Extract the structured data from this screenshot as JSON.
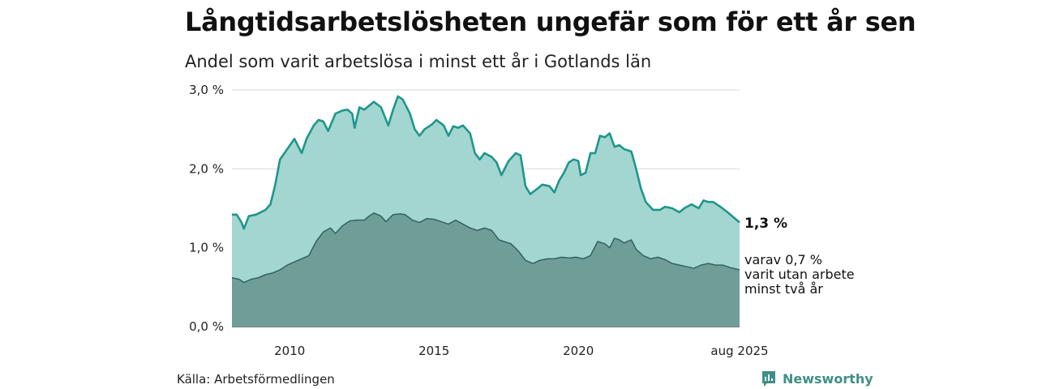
{
  "header": {
    "title": "Långtidsarbetslösheten ungefär som för ett år sen",
    "subtitle": "Andel som varit arbetslösa i minst ett år i Gotlands län"
  },
  "footer": {
    "source": "Källa: Arbetsförmedlingen",
    "brand": "Newsworthy"
  },
  "colors": {
    "main_line": "#1f968b",
    "main_fill": "#a3d6d0",
    "sub_line": "#2e5e58",
    "sub_fill": "#6f9d97",
    "grid": "#d9d9d9"
  },
  "chart_data": {
    "type": "area",
    "title": "Långtidsarbetslösheten ungefär som för ett år sen",
    "subtitle": "Andel som varit arbetslösa i minst ett år i Gotlands län",
    "x_range": [
      "2008-01",
      "2025-08"
    ],
    "ylim": [
      0,
      3.0
    ],
    "y_ticks": [
      {
        "value": 0,
        "label": "0,0 %"
      },
      {
        "value": 1,
        "label": "1,0 %"
      },
      {
        "value": 2,
        "label": "2,0 %"
      },
      {
        "value": 3,
        "label": "3,0 %"
      }
    ],
    "x_ticks": [
      {
        "x": "2010-01",
        "label": "2010"
      },
      {
        "x": "2015-01",
        "label": "2015"
      },
      {
        "x": "2020-01",
        "label": "2020"
      },
      {
        "x": "2025-08",
        "label": "aug 2025"
      }
    ],
    "grid": true,
    "series": [
      {
        "key": "minst_ett_ar",
        "end_label": "1,3 %",
        "points": [
          [
            "2008-01",
            1.42
          ],
          [
            "2008-03",
            1.42
          ],
          [
            "2008-05",
            1.32
          ],
          [
            "2008-06",
            1.24
          ],
          [
            "2008-08",
            1.4
          ],
          [
            "2008-11",
            1.42
          ],
          [
            "2009-01",
            1.45
          ],
          [
            "2009-03",
            1.48
          ],
          [
            "2009-05",
            1.55
          ],
          [
            "2009-07",
            1.8
          ],
          [
            "2009-09",
            2.12
          ],
          [
            "2009-12",
            2.25
          ],
          [
            "2010-03",
            2.38
          ],
          [
            "2010-06",
            2.2
          ],
          [
            "2010-08",
            2.38
          ],
          [
            "2010-11",
            2.55
          ],
          [
            "2011-01",
            2.62
          ],
          [
            "2011-03",
            2.6
          ],
          [
            "2011-05",
            2.48
          ],
          [
            "2011-08",
            2.7
          ],
          [
            "2011-11",
            2.74
          ],
          [
            "2012-01",
            2.75
          ],
          [
            "2012-03",
            2.7
          ],
          [
            "2012-04",
            2.52
          ],
          [
            "2012-06",
            2.78
          ],
          [
            "2012-08",
            2.75
          ],
          [
            "2012-10",
            2.8
          ],
          [
            "2012-12",
            2.85
          ],
          [
            "2013-03",
            2.78
          ],
          [
            "2013-06",
            2.55
          ],
          [
            "2013-08",
            2.75
          ],
          [
            "2013-10",
            2.92
          ],
          [
            "2013-12",
            2.88
          ],
          [
            "2014-03",
            2.7
          ],
          [
            "2014-05",
            2.5
          ],
          [
            "2014-07",
            2.42
          ],
          [
            "2014-09",
            2.5
          ],
          [
            "2014-12",
            2.56
          ],
          [
            "2015-02",
            2.62
          ],
          [
            "2015-05",
            2.55
          ],
          [
            "2015-07",
            2.42
          ],
          [
            "2015-09",
            2.54
          ],
          [
            "2015-11",
            2.52
          ],
          [
            "2016-01",
            2.55
          ],
          [
            "2016-04",
            2.45
          ],
          [
            "2016-06",
            2.2
          ],
          [
            "2016-08",
            2.12
          ],
          [
            "2016-10",
            2.2
          ],
          [
            "2017-01",
            2.15
          ],
          [
            "2017-03",
            2.08
          ],
          [
            "2017-05",
            1.92
          ],
          [
            "2017-08",
            2.1
          ],
          [
            "2017-11",
            2.2
          ],
          [
            "2018-01",
            2.17
          ],
          [
            "2018-03",
            1.78
          ],
          [
            "2018-05",
            1.68
          ],
          [
            "2018-08",
            1.75
          ],
          [
            "2018-10",
            1.8
          ],
          [
            "2019-01",
            1.78
          ],
          [
            "2019-03",
            1.7
          ],
          [
            "2019-05",
            1.85
          ],
          [
            "2019-07",
            1.95
          ],
          [
            "2019-09",
            2.08
          ],
          [
            "2019-11",
            2.12
          ],
          [
            "2020-01",
            2.1
          ],
          [
            "2020-02",
            1.92
          ],
          [
            "2020-04",
            1.95
          ],
          [
            "2020-06",
            2.2
          ],
          [
            "2020-08",
            2.2
          ],
          [
            "2020-10",
            2.42
          ],
          [
            "2020-12",
            2.4
          ],
          [
            "2021-02",
            2.45
          ],
          [
            "2021-04",
            2.28
          ],
          [
            "2021-06",
            2.3
          ],
          [
            "2021-08",
            2.25
          ],
          [
            "2021-11",
            2.22
          ],
          [
            "2022-01",
            2.0
          ],
          [
            "2022-03",
            1.75
          ],
          [
            "2022-05",
            1.58
          ],
          [
            "2022-08",
            1.48
          ],
          [
            "2022-11",
            1.48
          ],
          [
            "2023-01",
            1.52
          ],
          [
            "2023-04",
            1.5
          ],
          [
            "2023-07",
            1.45
          ],
          [
            "2023-09",
            1.5
          ],
          [
            "2023-12",
            1.55
          ],
          [
            "2024-03",
            1.5
          ],
          [
            "2024-05",
            1.6
          ],
          [
            "2024-07",
            1.58
          ],
          [
            "2024-09",
            1.58
          ],
          [
            "2024-12",
            1.52
          ],
          [
            "2025-03",
            1.45
          ],
          [
            "2025-08",
            1.32
          ]
        ]
      },
      {
        "key": "minst_tva_ar",
        "end_label": [
          "varav 0,7 %",
          "varit utan arbete",
          "minst två år"
        ],
        "points": [
          [
            "2008-01",
            0.62
          ],
          [
            "2008-04",
            0.6
          ],
          [
            "2008-06",
            0.56
          ],
          [
            "2008-09",
            0.6
          ],
          [
            "2008-12",
            0.62
          ],
          [
            "2009-03",
            0.66
          ],
          [
            "2009-06",
            0.68
          ],
          [
            "2009-09",
            0.72
          ],
          [
            "2009-12",
            0.78
          ],
          [
            "2010-03",
            0.82
          ],
          [
            "2010-06",
            0.86
          ],
          [
            "2010-09",
            0.9
          ],
          [
            "2010-12",
            1.08
          ],
          [
            "2011-03",
            1.2
          ],
          [
            "2011-06",
            1.25
          ],
          [
            "2011-08",
            1.18
          ],
          [
            "2011-11",
            1.28
          ],
          [
            "2012-02",
            1.34
          ],
          [
            "2012-05",
            1.35
          ],
          [
            "2012-08",
            1.35
          ],
          [
            "2012-10",
            1.4
          ],
          [
            "2012-12",
            1.44
          ],
          [
            "2013-03",
            1.4
          ],
          [
            "2013-05",
            1.33
          ],
          [
            "2013-08",
            1.42
          ],
          [
            "2013-11",
            1.43
          ],
          [
            "2014-01",
            1.42
          ],
          [
            "2014-04",
            1.35
          ],
          [
            "2014-07",
            1.32
          ],
          [
            "2014-10",
            1.37
          ],
          [
            "2015-01",
            1.36
          ],
          [
            "2015-04",
            1.33
          ],
          [
            "2015-07",
            1.3
          ],
          [
            "2015-10",
            1.35
          ],
          [
            "2016-01",
            1.3
          ],
          [
            "2016-04",
            1.25
          ],
          [
            "2016-07",
            1.22
          ],
          [
            "2016-10",
            1.25
          ],
          [
            "2017-01",
            1.22
          ],
          [
            "2017-04",
            1.1
          ],
          [
            "2017-06",
            1.08
          ],
          [
            "2017-09",
            1.05
          ],
          [
            "2017-12",
            0.96
          ],
          [
            "2018-03",
            0.84
          ],
          [
            "2018-06",
            0.8
          ],
          [
            "2018-09",
            0.84
          ],
          [
            "2018-12",
            0.86
          ],
          [
            "2019-03",
            0.86
          ],
          [
            "2019-06",
            0.88
          ],
          [
            "2019-09",
            0.87
          ],
          [
            "2019-12",
            0.88
          ],
          [
            "2020-03",
            0.86
          ],
          [
            "2020-06",
            0.9
          ],
          [
            "2020-09",
            1.08
          ],
          [
            "2020-12",
            1.05
          ],
          [
            "2021-02",
            1.0
          ],
          [
            "2021-04",
            1.12
          ],
          [
            "2021-06",
            1.1
          ],
          [
            "2021-08",
            1.06
          ],
          [
            "2021-11",
            1.1
          ],
          [
            "2022-01",
            0.98
          ],
          [
            "2022-04",
            0.9
          ],
          [
            "2022-07",
            0.86
          ],
          [
            "2022-10",
            0.88
          ],
          [
            "2023-01",
            0.85
          ],
          [
            "2023-04",
            0.8
          ],
          [
            "2023-07",
            0.78
          ],
          [
            "2023-10",
            0.76
          ],
          [
            "2024-01",
            0.74
          ],
          [
            "2024-04",
            0.78
          ],
          [
            "2024-07",
            0.8
          ],
          [
            "2024-10",
            0.78
          ],
          [
            "2025-01",
            0.78
          ],
          [
            "2025-04",
            0.75
          ],
          [
            "2025-08",
            0.72
          ]
        ]
      }
    ]
  }
}
